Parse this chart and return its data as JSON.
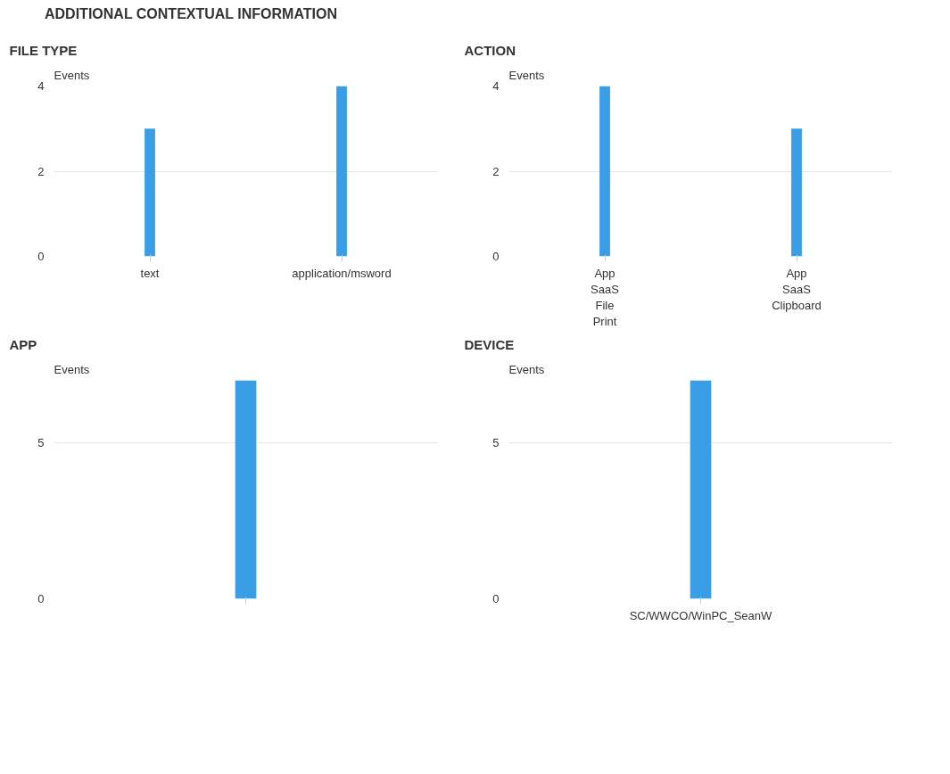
{
  "chart_data": [
    {
      "type": "bar",
      "title": "FILE TYPE",
      "ylabel": "Events",
      "annotations": [
        "ADDITIONAL CONTEXTUAL INFORMATION"
      ],
      "categories": [
        "text",
        "application/msword"
      ],
      "values": [
        3,
        4
      ],
      "color": "#3a9ee6",
      "ylim": [
        0,
        4
      ],
      "yticks": [
        0,
        2,
        4
      ],
      "grid": "y"
    },
    {
      "type": "bar",
      "title": "ACTION",
      "ylabel": "Events",
      "categories": [
        "App\nSaaS\nFile\nPrint",
        "App\nSaaS\nClipboard"
      ],
      "values": [
        4,
        3
      ],
      "color": "#3a9ee6",
      "ylim": [
        0,
        4
      ],
      "yticks": [
        0,
        2,
        4
      ],
      "grid": "y"
    },
    {
      "type": "bar",
      "title": "APP",
      "ylabel": "Events",
      "categories": [
        null
      ],
      "values": [
        7
      ],
      "color": "#3a9ee6",
      "ylim": [
        0,
        7
      ],
      "yticks": [
        0,
        5
      ],
      "grid": "y"
    },
    {
      "type": "bar",
      "title": "DEVICE",
      "ylabel": "Events",
      "categories": [
        "SC/WWCO/WinPC_SeanW"
      ],
      "values": [
        7
      ],
      "color": "#3a9ee6",
      "ylim": [
        0,
        7
      ],
      "yticks": [
        0,
        5
      ],
      "grid": "y"
    }
  ]
}
